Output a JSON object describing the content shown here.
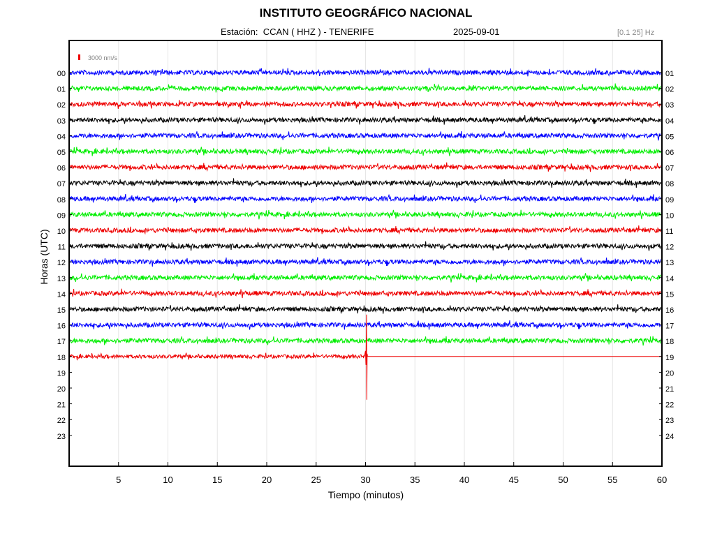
{
  "header": {
    "title": "INSTITUTO GEOGRÁFICO NACIONAL",
    "station_prefix": "Estación:",
    "station": "CCAN ( HHZ ) - TENERIFE",
    "date": "2025-09-01",
    "band": "[0.1 25] Hz"
  },
  "chart_data": {
    "type": "line",
    "title": "INSTITUTO GEOGRÁFICO NACIONAL",
    "xlabel": "Tiempo (minutos)",
    "ylabel": "Horas (UTC)",
    "xlim": [
      0,
      60
    ],
    "x_ticks": [
      "5",
      "10",
      "15",
      "20",
      "25",
      "30",
      "35",
      "40",
      "45",
      "50",
      "55",
      "60"
    ],
    "y_ticks_left": [
      "00",
      "01",
      "02",
      "03",
      "04",
      "05",
      "06",
      "07",
      "08",
      "09",
      "10",
      "11",
      "12",
      "13",
      "14",
      "15",
      "16",
      "17",
      "18",
      "19",
      "20",
      "21",
      "22",
      "23"
    ],
    "y_ticks_right": [
      "01",
      "02",
      "03",
      "04",
      "05",
      "06",
      "07",
      "08",
      "09",
      "10",
      "11",
      "12",
      "13",
      "14",
      "15",
      "16",
      "17",
      "18",
      "19",
      "20",
      "21",
      "22",
      "23",
      "24"
    ],
    "scale_label": "3000 nm/s",
    "grid": true,
    "trace_colors": [
      "#0000ff",
      "#00ee00",
      "#ee0000",
      "#000000"
    ],
    "complete_hours": 18,
    "last_hour": "18",
    "last_trace_end_minute": 30.1,
    "event": {
      "hour": "18",
      "minute": 30.1
    }
  }
}
